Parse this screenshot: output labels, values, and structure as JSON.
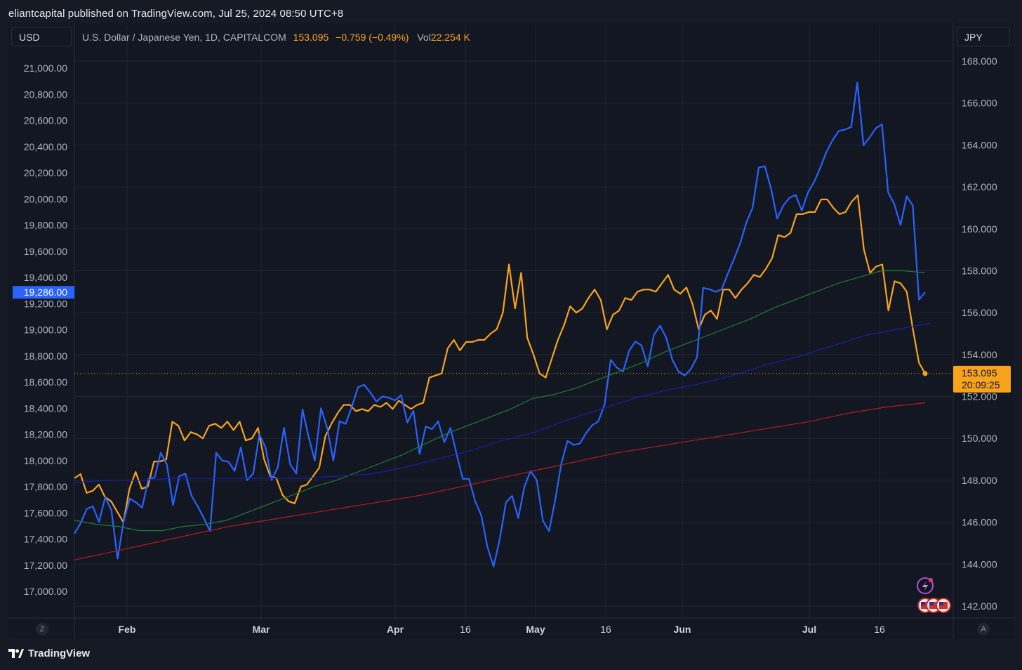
{
  "header": {
    "published": "eliantcapital published on TradingView.com, Jul 25, 2024 08:50 UTC+8"
  },
  "legend": {
    "symbol": "U.S. Dollar / Japanese Yen, 1D, CAPITALCOM",
    "last": "153.095",
    "change": "−0.759 (−0.49%)",
    "vol_label": "Vol",
    "vol_value": "22.254 K"
  },
  "units": {
    "left": "USD",
    "right": "JPY"
  },
  "footer": {
    "brand": "TradingView"
  },
  "corner_buttons": {
    "left": "Z",
    "right": "A"
  },
  "colors": {
    "background": "#131722",
    "usdjpy": "#f7a31c",
    "compare": "#2962ff",
    "ma_green": "#1e7d32",
    "ma_navy": "#1a1fa8",
    "ma_red": "#b71c1c",
    "left_badge": "#2962ff"
  },
  "chart_data": {
    "type": "line",
    "x_labels": [
      "Feb",
      "Mar",
      "Apr",
      "16",
      "May",
      "16",
      "Jun",
      "Jul",
      "16"
    ],
    "left_axis": {
      "unit": "USD",
      "ticks": [
        "21,000.00",
        "20,800.00",
        "20,600.00",
        "20,400.00",
        "20,200.00",
        "20,000.00",
        "19,800.00",
        "19,600.00",
        "19,400.00",
        "19,200.00",
        "19,000.00",
        "18,800.00",
        "18,600.00",
        "18,400.00",
        "18,200.00",
        "18,000.00",
        "17,800.00",
        "17,600.00",
        "17,400.00",
        "17,200.00",
        "17,000.00"
      ],
      "range": [
        16900,
        21050
      ],
      "last_badge": "19,286.00",
      "last_value": 19286
    },
    "right_axis": {
      "unit": "JPY",
      "ticks": [
        "168.000",
        "166.000",
        "164.000",
        "162.000",
        "160.000",
        "158.000",
        "156.000",
        "154.000",
        "152.000",
        "150.000",
        "148.000",
        "146.000",
        "144.000",
        "142.000"
      ],
      "range": [
        141.5,
        168.5
      ],
      "last_badge": "153.095",
      "countdown": "20:09:25",
      "last_value": 153.095
    },
    "series": [
      {
        "name": "U.S. Dollar / Japanese Yen",
        "axis": "right",
        "color": "#f7a31c",
        "values": [
          148.1,
          148.3,
          147.4,
          147.5,
          147.8,
          147.2,
          147.0,
          146.5,
          146.0,
          147.6,
          148.4,
          147.6,
          147.7,
          148.9,
          148.9,
          149.0,
          150.8,
          150.6,
          149.9,
          150.3,
          150.2,
          150.0,
          150.6,
          150.7,
          150.5,
          150.8,
          150.4,
          150.8,
          149.9,
          150.0,
          150.5,
          149.0,
          148.2,
          148.1,
          147.3,
          147.0,
          146.9,
          147.7,
          147.8,
          148.2,
          148.6,
          150.1,
          150.7,
          151.2,
          151.6,
          151.6,
          151.3,
          151.4,
          151.3,
          151.6,
          151.5,
          151.7,
          151.4,
          151.8,
          151.6,
          151.4,
          151.6,
          151.7,
          152.9,
          153.0,
          153.1,
          154.3,
          154.7,
          154.2,
          154.6,
          154.6,
          154.7,
          154.7,
          155.0,
          155.2,
          156.0,
          158.3,
          156.2,
          157.9,
          154.8,
          154.0,
          153.1,
          152.9,
          153.8,
          154.7,
          155.4,
          156.3,
          156.0,
          156.2,
          156.7,
          157.1,
          156.6,
          155.2,
          155.9,
          156.1,
          156.7,
          156.6,
          157.0,
          157.1,
          157.1,
          157.0,
          157.4,
          157.8,
          157.1,
          156.9,
          157.2,
          156.4,
          155.2,
          155.9,
          156.1,
          155.7,
          157.1,
          157.1,
          156.7,
          157.1,
          157.4,
          157.8,
          157.7,
          158.1,
          158.6,
          159.7,
          159.6,
          159.8,
          160.7,
          160.7,
          160.8,
          160.8,
          161.4,
          161.4,
          161.0,
          160.7,
          160.8,
          161.3,
          161.6,
          159.0,
          157.9,
          158.2,
          158.3,
          156.1,
          157.5,
          157.4,
          157.0,
          155.2,
          153.6,
          153.1
        ]
      },
      {
        "name": "Comparison series",
        "axis": "left",
        "color": "#2962ff",
        "values": [
          17440,
          17520,
          17630,
          17650,
          17530,
          17720,
          17620,
          17250,
          17540,
          17710,
          17680,
          17640,
          17860,
          17870,
          18060,
          17970,
          17660,
          17880,
          17900,
          17730,
          17650,
          17560,
          17460,
          18060,
          18000,
          17990,
          17920,
          18100,
          17850,
          17900,
          18200,
          18100,
          17850,
          17950,
          18250,
          17970,
          17900,
          18390,
          18180,
          18000,
          18400,
          18250,
          18000,
          18300,
          18280,
          18410,
          18560,
          18580,
          18520,
          18450,
          18490,
          18480,
          18460,
          18500,
          18290,
          18380,
          18050,
          18260,
          18240,
          18300,
          18140,
          18250,
          18050,
          17860,
          17860,
          17690,
          17580,
          17340,
          17190,
          17400,
          17680,
          17730,
          17560,
          17800,
          17920,
          17850,
          17540,
          17460,
          17700,
          17980,
          18150,
          18120,
          18130,
          18210,
          18270,
          18300,
          18430,
          18770,
          18710,
          18680,
          18840,
          18910,
          18880,
          18720,
          18960,
          19030,
          18940,
          18770,
          18680,
          18650,
          18700,
          18790,
          19320,
          19310,
          19290,
          19310,
          19430,
          19540,
          19660,
          19820,
          19930,
          20240,
          20250,
          20080,
          19850,
          19950,
          20010,
          20030,
          19910,
          20050,
          20130,
          20240,
          20360,
          20450,
          20520,
          20530,
          20550,
          20890,
          20410,
          20470,
          20540,
          20570,
          20050,
          19960,
          19800,
          20020,
          19950,
          19230,
          19286
        ]
      },
      {
        "name": "MA green",
        "axis": "right",
        "color": "#1e7d32",
        "values": [
          146.1,
          145.9,
          145.8,
          145.6,
          145.6,
          145.8,
          145.9,
          146.1,
          146.5,
          146.9,
          147.3,
          147.7,
          148.0,
          148.4,
          148.8,
          149.2,
          149.7,
          150.2,
          150.6,
          151.0,
          151.4,
          151.9,
          152.1,
          152.4,
          152.8,
          153.2,
          153.6,
          154.1,
          154.5,
          154.9,
          155.3,
          155.7,
          156.2,
          156.6,
          157.0,
          157.4,
          157.7,
          158.0,
          158.0,
          157.9
        ]
      },
      {
        "name": "MA navy",
        "axis": "right",
        "color": "#1a1fa8",
        "values": [
          147.9,
          148.0,
          148.0,
          148.1,
          148.1,
          148.1,
          148.1,
          148.1,
          148.2,
          148.3,
          148.6,
          149.0,
          149.4,
          149.9,
          150.3,
          150.9,
          151.4,
          151.9,
          152.3,
          152.6,
          153.0,
          153.5,
          153.9,
          154.4,
          154.9,
          155.2,
          155.5
        ]
      },
      {
        "name": "MA red",
        "axis": "right",
        "color": "#b71c1c",
        "values": [
          144.2,
          144.6,
          145.0,
          145.4,
          145.8,
          146.1,
          146.4,
          146.7,
          147.0,
          147.3,
          147.7,
          148.1,
          148.5,
          148.9,
          149.3,
          149.6,
          149.9,
          150.2,
          150.5,
          150.8,
          151.2,
          151.5,
          151.7
        ]
      }
    ]
  }
}
